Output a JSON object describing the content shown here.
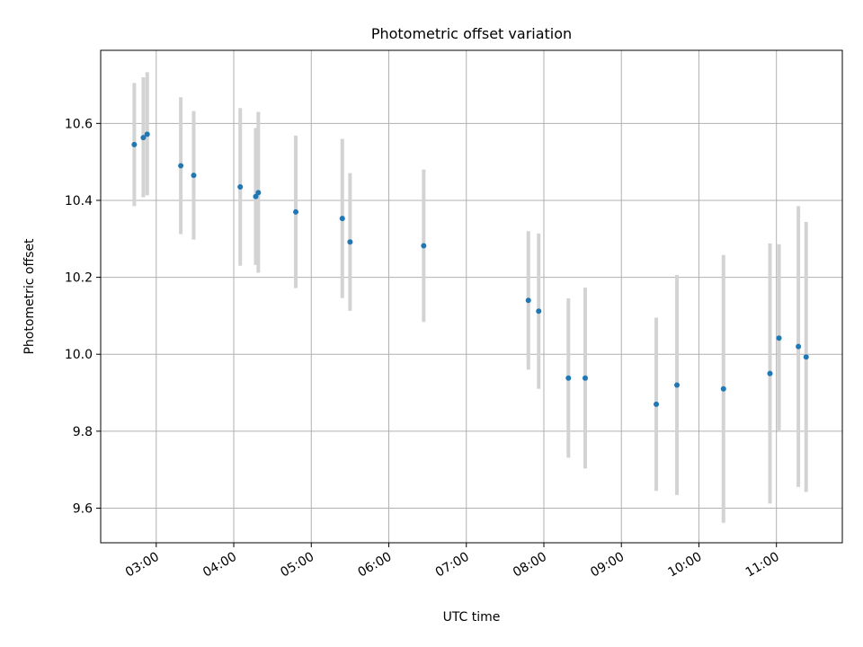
{
  "chart_data": {
    "type": "scatter",
    "title": "Photometric offset variation",
    "xlabel": "UTC time",
    "ylabel": "Photometric offset",
    "xlim": [
      "02:17",
      "11:51"
    ],
    "ylim": [
      9.51,
      10.79
    ],
    "x_ticks": [
      "03:00",
      "04:00",
      "05:00",
      "06:00",
      "07:00",
      "08:00",
      "09:00",
      "10:00",
      "11:00"
    ],
    "y_ticks": [
      9.6,
      9.8,
      10.0,
      10.2,
      10.4,
      10.6
    ],
    "y_tick_labels": [
      "9.6",
      "9.8",
      "10.0",
      "10.2",
      "10.4",
      "10.6"
    ],
    "grid": true,
    "point_color": "#1f77b4",
    "errorbar_color": "#d3d3d3",
    "series": [
      {
        "points": [
          {
            "x": "02:43",
            "y": 10.545,
            "low": 10.385,
            "high": 10.705
          },
          {
            "x": "02:50",
            "y": 10.563,
            "low": 10.408,
            "high": 10.72
          },
          {
            "x": "02:53",
            "y": 10.572,
            "low": 10.413,
            "high": 10.733
          },
          {
            "x": "03:19",
            "y": 10.49,
            "low": 10.312,
            "high": 10.668
          },
          {
            "x": "03:29",
            "y": 10.465,
            "low": 10.298,
            "high": 10.632
          },
          {
            "x": "04:05",
            "y": 10.435,
            "low": 10.23,
            "high": 10.64
          },
          {
            "x": "04:17",
            "y": 10.41,
            "low": 10.232,
            "high": 10.588
          },
          {
            "x": "04:19",
            "y": 10.42,
            "low": 10.212,
            "high": 10.63
          },
          {
            "x": "04:48",
            "y": 10.37,
            "low": 10.172,
            "high": 10.568
          },
          {
            "x": "05:24",
            "y": 10.353,
            "low": 10.146,
            "high": 10.56
          },
          {
            "x": "05:30",
            "y": 10.292,
            "low": 10.113,
            "high": 10.471
          },
          {
            "x": "06:27",
            "y": 10.282,
            "low": 10.084,
            "high": 10.48
          },
          {
            "x": "07:48",
            "y": 10.14,
            "low": 9.96,
            "high": 10.32
          },
          {
            "x": "07:56",
            "y": 10.112,
            "low": 9.91,
            "high": 10.314
          },
          {
            "x": "08:19",
            "y": 9.938,
            "low": 9.731,
            "high": 10.145
          },
          {
            "x": "08:32",
            "y": 9.938,
            "low": 9.703,
            "high": 10.173
          },
          {
            "x": "09:27",
            "y": 9.87,
            "low": 9.645,
            "high": 10.095
          },
          {
            "x": "09:43",
            "y": 9.92,
            "low": 9.634,
            "high": 10.206
          },
          {
            "x": "10:19",
            "y": 9.91,
            "low": 9.562,
            "high": 10.258
          },
          {
            "x": "10:55",
            "y": 9.95,
            "low": 9.612,
            "high": 10.288
          },
          {
            "x": "11:02",
            "y": 10.042,
            "low": 9.798,
            "high": 10.286
          },
          {
            "x": "11:17",
            "y": 10.02,
            "low": 9.655,
            "high": 10.385
          },
          {
            "x": "11:23",
            "y": 9.993,
            "low": 9.642,
            "high": 10.344
          }
        ]
      }
    ]
  }
}
